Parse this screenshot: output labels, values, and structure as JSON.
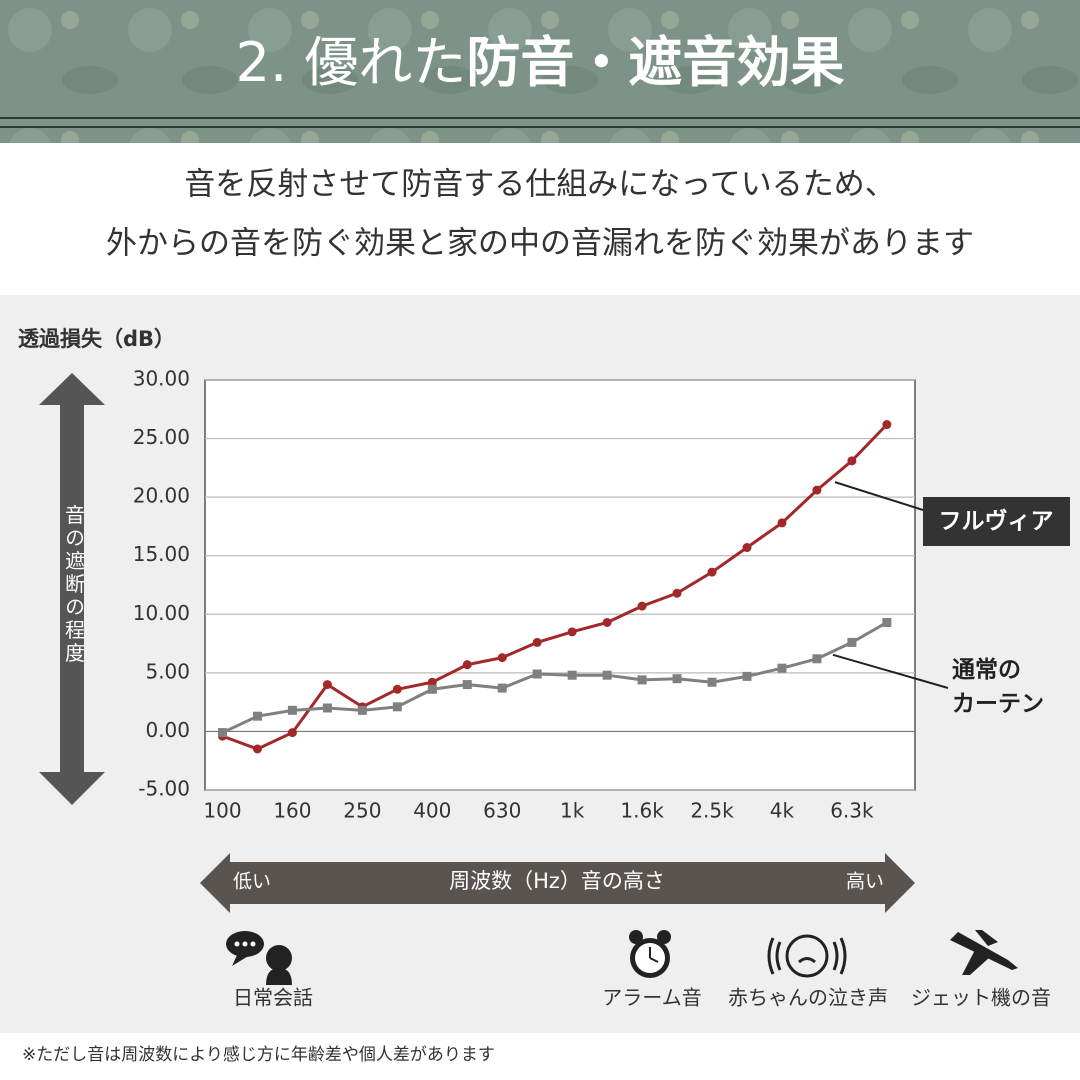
{
  "header": {
    "title_light": "2. 優れた",
    "title_bold": "防音・遮音効果"
  },
  "subtitle": [
    "音を反射させて防音する仕組みになっているため、",
    "外からの音を防ぐ効果と家の中の音漏れを防ぐ効果があります"
  ],
  "chart_data": {
    "type": "line",
    "y_label": "透過損失（dB）",
    "y_arrow_label": "音の遮断の程度",
    "x_arrow": {
      "low": "低い",
      "label": "周波数（Hz）音の高さ",
      "high": "高い"
    },
    "categories": [
      "100",
      null,
      "160",
      null,
      "250",
      null,
      "400",
      null,
      "630",
      null,
      "1k",
      null,
      "1.6k",
      null,
      "2.5k",
      null,
      "4k",
      null,
      "6.3k",
      null
    ],
    "series": [
      {
        "name": "フルヴィア",
        "color": "#a3282a",
        "values": [
          -0.4,
          -1.5,
          -0.1,
          4.0,
          2.1,
          3.6,
          4.2,
          5.7,
          6.3,
          7.6,
          8.5,
          9.3,
          10.7,
          11.8,
          13.6,
          15.7,
          17.8,
          20.6,
          23.1,
          26.2
        ]
      },
      {
        "name": "通常の\nカーテン",
        "color": "#808080",
        "values": [
          -0.1,
          1.3,
          1.8,
          2.0,
          1.8,
          2.1,
          3.6,
          4.0,
          3.7,
          4.9,
          4.8,
          4.8,
          4.4,
          4.5,
          4.2,
          4.7,
          5.4,
          6.2,
          7.6,
          9.3
        ]
      }
    ],
    "ylim": [
      -5,
      30
    ],
    "yticks": [
      {
        "value": -5,
        "label": "-5.00"
      },
      {
        "value": 0,
        "label": "0.00"
      },
      {
        "value": 5,
        "label": "5.00"
      },
      {
        "value": 10,
        "label": "10.00"
      },
      {
        "value": 15,
        "label": "15.00"
      },
      {
        "value": 20,
        "label": "20.00"
      },
      {
        "value": 25,
        "label": "25.00"
      },
      {
        "value": 30,
        "label": "30.00"
      }
    ],
    "grid": true
  },
  "examples": [
    "日常会話",
    "アラーム音",
    "赤ちゃんの泣き声",
    "ジェット機の音"
  ],
  "footnote": "※ただし音は周波数により感じ方に年齢差や個人差があります"
}
